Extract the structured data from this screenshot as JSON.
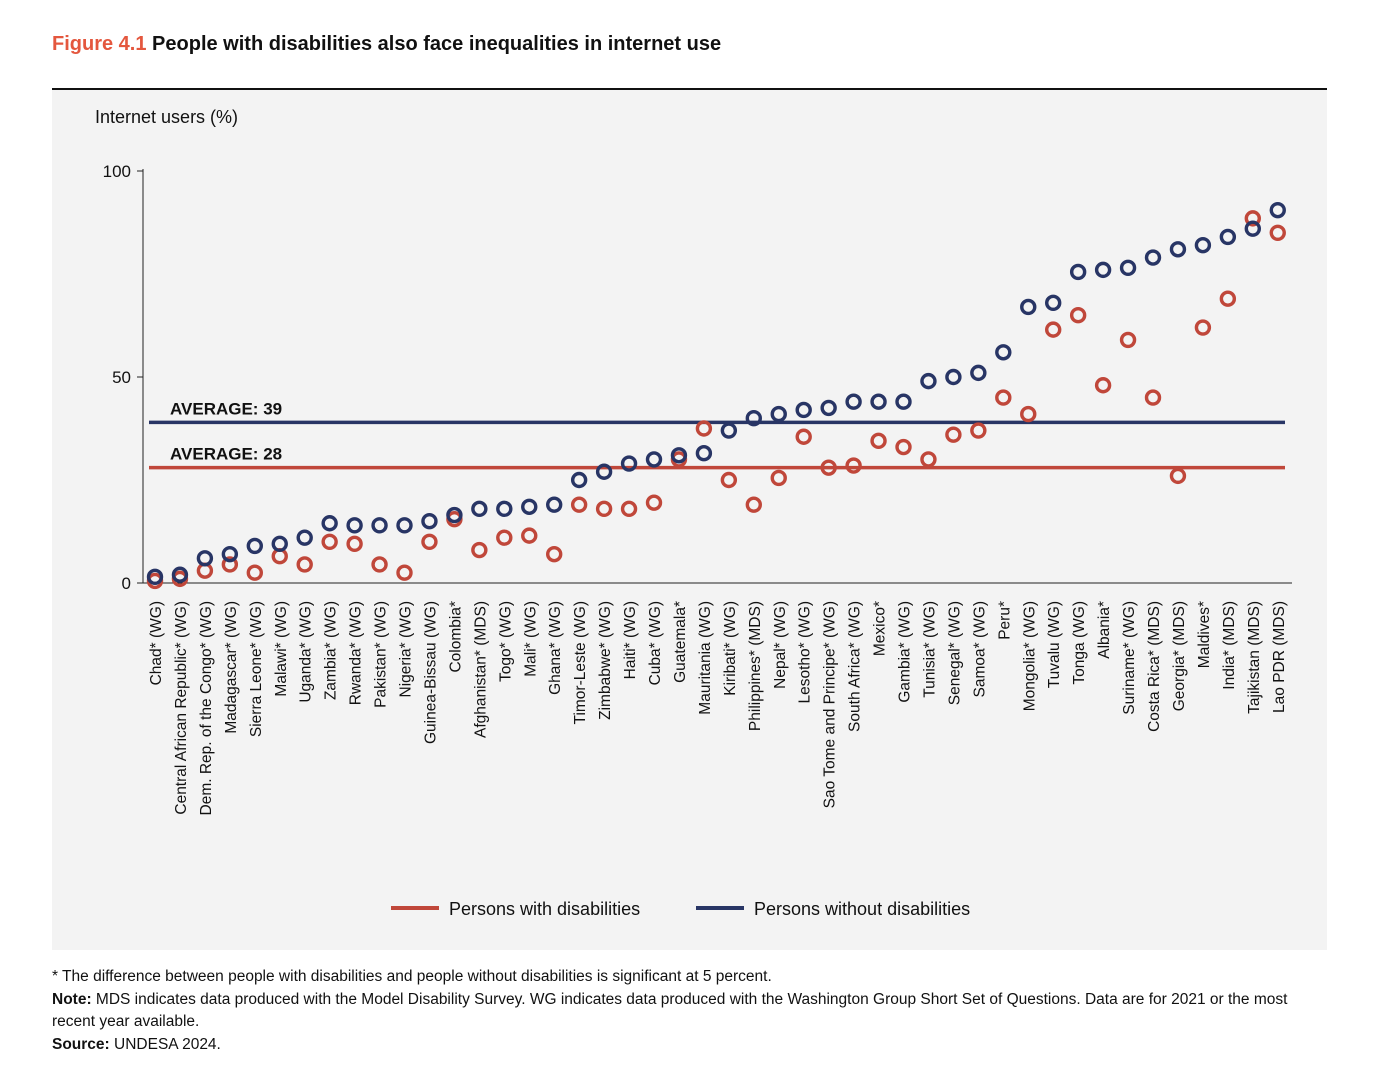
{
  "figure": {
    "label": "Figure 4.1",
    "title": "People with disabilities also face inequalities in internet use"
  },
  "colors": {
    "with_disabilities": "#c0473a",
    "without_disabilities": "#283565",
    "title_accent": "#e4573e",
    "panel_bg": "#f3f3f3"
  },
  "chart_data": {
    "type": "scatter",
    "ylabel": "Internet users (%)",
    "ylim": [
      0,
      100
    ],
    "yticks": [
      0,
      50,
      100
    ],
    "grid": false,
    "legend_position": "bottom-center",
    "categories": [
      "Chad* (WG)",
      "Central African Republic* (WG)",
      "Dem. Rep. of the Congo* (WG)",
      "Madagascar* (WG)",
      "Sierra Leone* (WG)",
      "Malawi* (WG)",
      "Uganda* (WG)",
      "Zambia* (WG)",
      "Rwanda* (WG)",
      "Pakistan* (WG)",
      "Nigeria* (WG)",
      "Guinea-Bissau (WG)",
      "Colombia*",
      "Afghanistan* (MDS)",
      "Togo* (WG)",
      "Mali* (WG)",
      "Ghana* (WG)",
      "Timor-Leste (WG)",
      "Zimbabwe* (WG)",
      "Haiti* (WG)",
      "Cuba* (WG)",
      "Guatemala*",
      "Mauritania (WG)",
      "Kiribati* (WG)",
      "Philippines* (MDS)",
      "Nepal* (WG)",
      "Lesotho* (WG)",
      "Sao Tome and Principe* (WG)",
      "South Africa* (WG)",
      "Mexico*",
      "Gambia* (WG)",
      "Tunisia* (WG)",
      "Senegal* (WG)",
      "Samoa* (WG)",
      "Peru*",
      "Mongolia* (WG)",
      "Tuvalu (WG)",
      "Tonga (WG)",
      "Albania*",
      "Suriname* (WG)",
      "Costa Rica* (MDS)",
      "Georgia* (MDS)",
      "Maldives*",
      "India* (MDS)",
      "Tajikistan (MDS)",
      "Lao PDR (MDS)"
    ],
    "series": [
      {
        "name": "Persons with disabilities",
        "values": [
          0.5,
          1,
          3,
          4.5,
          2.5,
          6.5,
          4.5,
          10,
          9.5,
          4.5,
          2.5,
          10,
          15.5,
          8,
          11,
          11.5,
          7,
          19,
          18,
          18,
          19.5,
          30,
          37.5,
          25,
          19,
          25.5,
          35.5,
          28,
          28.5,
          34.5,
          33,
          30,
          36,
          37,
          45,
          41,
          61.5,
          65,
          48,
          59,
          45,
          26,
          62,
          69,
          88.5,
          85
        ],
        "average": 28,
        "average_label": "AVERAGE: 28"
      },
      {
        "name": "Persons without disabilities",
        "values": [
          1.5,
          2,
          6,
          7,
          9,
          9.5,
          11,
          14.5,
          14,
          14,
          14,
          15,
          16.5,
          18,
          18,
          18.5,
          19,
          25,
          27,
          29,
          30,
          31,
          31.5,
          37,
          40,
          41,
          42,
          42.5,
          44,
          44,
          44,
          49,
          50,
          51,
          56,
          67,
          68,
          75.5,
          76,
          76.5,
          79,
          81,
          82,
          84,
          86,
          90.5
        ],
        "average": 39,
        "average_label": "AVERAGE: 39"
      }
    ]
  },
  "footnotes": {
    "significance": "* The difference between people with disabilities and people without disabilities is significant at 5 percent.",
    "note_label": "Note:",
    "note_text": " MDS indicates data produced with the Model Disability Survey. WG indicates data produced with the Washington Group Short Set of Questions. Data are for 2021 or the most recent year available.",
    "source_label": "Source:",
    "source_text": " UNDESA 2024."
  }
}
